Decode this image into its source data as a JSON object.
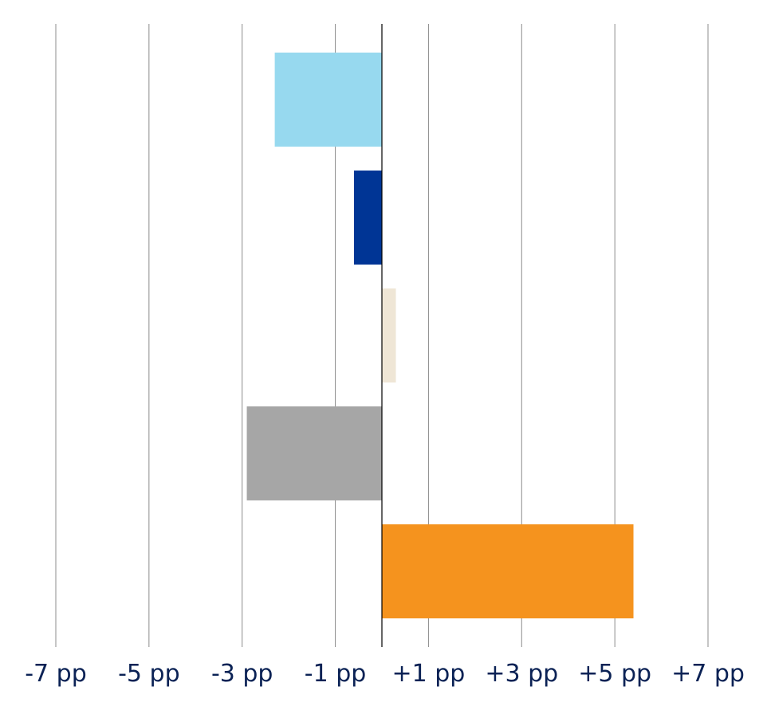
{
  "chart_data": {
    "type": "bar",
    "orientation": "horizontal",
    "categories": [
      "",
      "",
      "",
      "",
      ""
    ],
    "values": [
      -2.3,
      -0.6,
      0.3,
      -2.9,
      5.4
    ],
    "bar_colors": [
      "#97d9ef",
      "#003595",
      "#efe6d6",
      "#a6a6a6",
      "#f5931e"
    ],
    "xlim": [
      -7,
      7
    ],
    "x_ticks": [
      -7,
      -5,
      -3,
      -1,
      1,
      3,
      5,
      7
    ],
    "x_tick_labels": [
      "-7 pp",
      "-5 pp",
      "-3 pp",
      "-1 pp",
      "+1 pp",
      "+3 pp",
      "+5 pp",
      "+7 pp"
    ],
    "title": "",
    "xlabel": "",
    "ylabel": "",
    "grid": "vertical",
    "legend": "none",
    "colors": {
      "gridline": "#8c8c8c",
      "zero_line": "#000000",
      "tick_text": "#0b2255"
    }
  }
}
